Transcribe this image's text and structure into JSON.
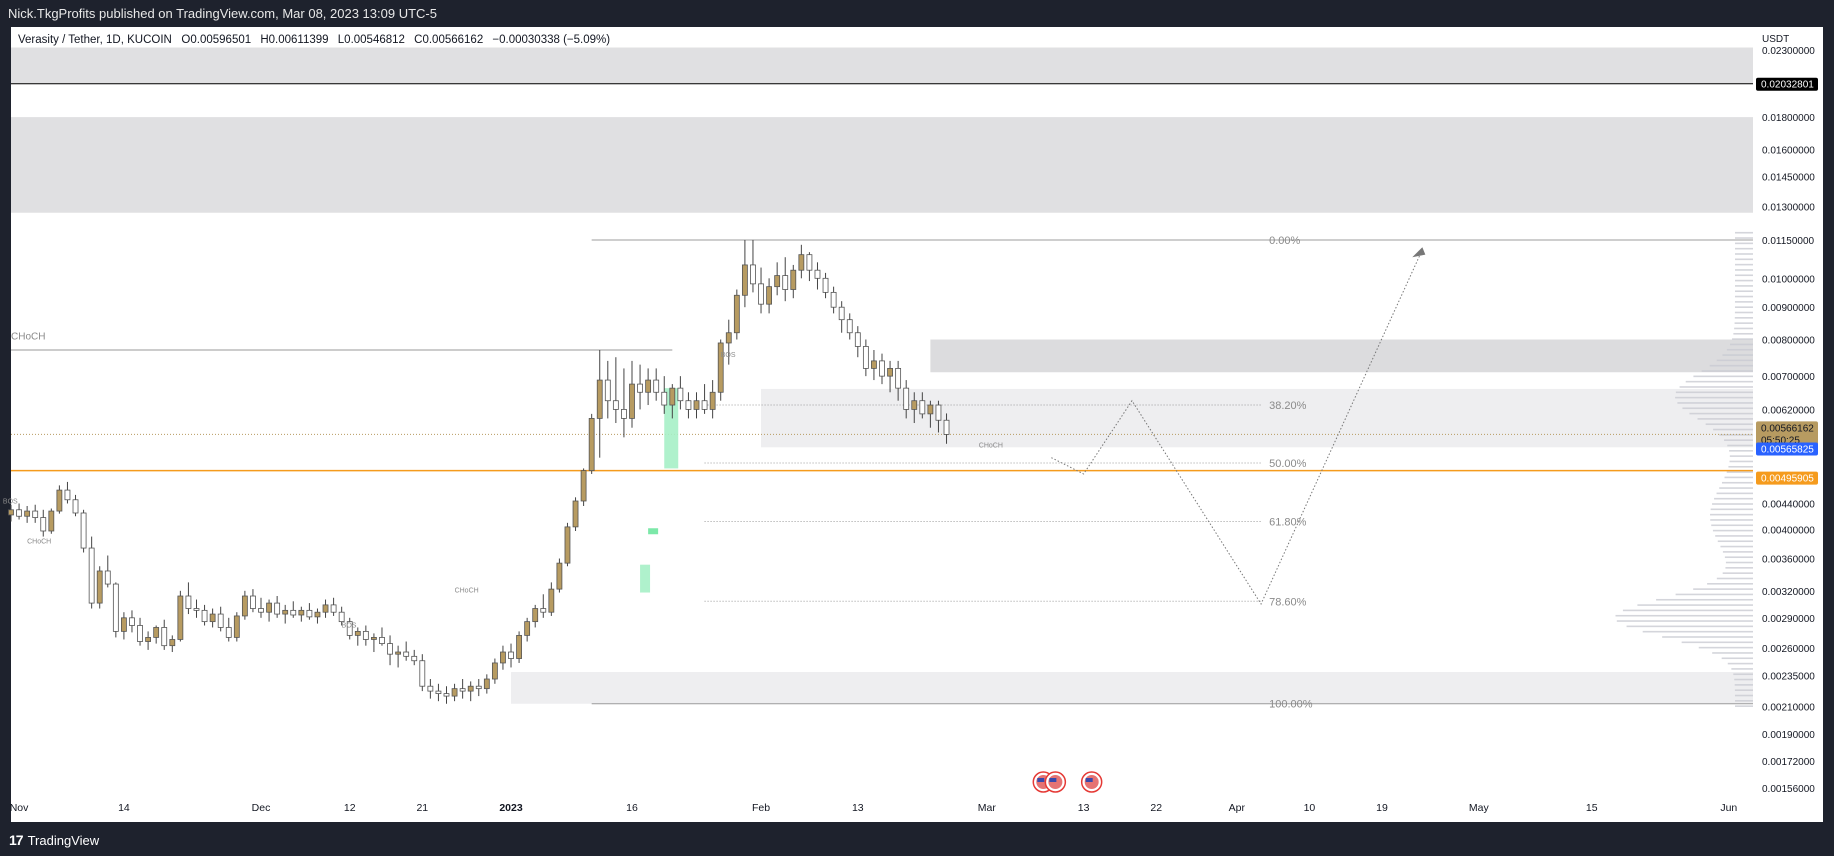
{
  "header": {
    "published_line": "Nick.TkgProfits published on TradingView.com, Mar 08, 2023 13:09 UTC-5"
  },
  "legend": {
    "symbol": "Verasity / Tether, 1D, KUCOIN",
    "open_label": "O",
    "open": "0.00596501",
    "high_label": "H",
    "high": "0.00611399",
    "low_label": "L",
    "low": "0.00546812",
    "close_label": "C",
    "close": "0.00566162",
    "change": "−0.00030338 (−5.09%)"
  },
  "footer": {
    "brand": "TradingView"
  },
  "colors": {
    "bull": "#b79b61",
    "bear": "#ffffff",
    "wick": "#444444",
    "hline_orange": "#f59b1d",
    "last_price_bg": "#b79b61",
    "blue_label": "#2962ff",
    "zone": "#d6d6d8",
    "zone_light": "#ececee",
    "fvg": "#a6f0c6"
  },
  "chart_data": {
    "type": "candlestick",
    "currency": "USDT",
    "y_scale": "log",
    "ylim": [
      0.00152,
      0.025
    ],
    "yaxis_ticks": [
      "0.02300000",
      "0.01800000",
      "0.01600000",
      "0.01450000",
      "0.01300000",
      "0.01150000",
      "0.01000000",
      "0.00900000",
      "0.00800000",
      "0.00700000",
      "0.00620000",
      "0.00440000",
      "0.00400000",
      "0.00360000",
      "0.00320000",
      "0.00290000",
      "0.00260000",
      "0.00235000",
      "0.00210000",
      "0.00190000",
      "0.00172000",
      "0.00156000"
    ],
    "price_labels": [
      {
        "value": "0.02032801",
        "price": 0.02032801,
        "style": "black"
      },
      {
        "value": "0.00566162",
        "price": 0.00566162,
        "style": "last",
        "countdown": "05:50:25"
      },
      {
        "value": "0.00565825",
        "price": 0.00565825,
        "style": "blue"
      },
      {
        "value": "0.00495905",
        "price": 0.00495905,
        "style": "orange"
      }
    ],
    "x_start": "2022-10-31",
    "x_end": "2023-06-04",
    "xaxis_ticks": [
      {
        "label": "Nov",
        "date": "2022-11-01"
      },
      {
        "label": "14",
        "date": "2022-11-14"
      },
      {
        "label": "Dec",
        "date": "2022-12-01"
      },
      {
        "label": "12",
        "date": "2022-12-12"
      },
      {
        "label": "21",
        "date": "2022-12-21"
      },
      {
        "label": "2023",
        "date": "2023-01-01"
      },
      {
        "label": "16",
        "date": "2023-01-16"
      },
      {
        "label": "Feb",
        "date": "2023-02-01"
      },
      {
        "label": "13",
        "date": "2023-02-13"
      },
      {
        "label": "Mar",
        "date": "2023-03-01"
      },
      {
        "label": "13",
        "date": "2023-03-13"
      },
      {
        "label": "22",
        "date": "2023-03-22"
      },
      {
        "label": "Apr",
        "date": "2023-04-01"
      },
      {
        "label": "10",
        "date": "2023-04-10"
      },
      {
        "label": "19",
        "date": "2023-04-19"
      },
      {
        "label": "May",
        "date": "2023-05-01"
      },
      {
        "label": "15",
        "date": "2023-05-15"
      },
      {
        "label": "Jun",
        "date": "2023-06-01"
      }
    ],
    "first_candle": "2022-10-31",
    "candles": [
      [
        0.00422,
        0.00438,
        0.00412,
        0.0043
      ],
      [
        0.0043,
        0.0044,
        0.00415,
        0.0042
      ],
      [
        0.0042,
        0.00436,
        0.0041,
        0.00428
      ],
      [
        0.00428,
        0.00438,
        0.0041,
        0.00418
      ],
      [
        0.00418,
        0.0043,
        0.0039,
        0.00398
      ],
      [
        0.00398,
        0.00432,
        0.00394,
        0.00428
      ],
      [
        0.00428,
        0.0047,
        0.00424,
        0.00462
      ],
      [
        0.00462,
        0.00476,
        0.0044,
        0.00446
      ],
      [
        0.00446,
        0.00454,
        0.0042,
        0.00425
      ],
      [
        0.00425,
        0.0043,
        0.00368,
        0.00374
      ],
      [
        0.00374,
        0.0039,
        0.003,
        0.00306
      ],
      [
        0.00306,
        0.0035,
        0.003,
        0.00344
      ],
      [
        0.00344,
        0.00364,
        0.00324,
        0.00328
      ],
      [
        0.00328,
        0.0033,
        0.0027,
        0.00276
      ],
      [
        0.00276,
        0.00296,
        0.00268,
        0.0029
      ],
      [
        0.0029,
        0.00298,
        0.00275,
        0.00282
      ],
      [
        0.00282,
        0.0029,
        0.00262,
        0.00266
      ],
      [
        0.00266,
        0.00276,
        0.00258,
        0.0027
      ],
      [
        0.0027,
        0.00282,
        0.00264,
        0.0028
      ],
      [
        0.0028,
        0.00288,
        0.00258,
        0.00262
      ],
      [
        0.00262,
        0.00272,
        0.00256,
        0.00268
      ],
      [
        0.00268,
        0.0032,
        0.00266,
        0.00314
      ],
      [
        0.00314,
        0.0033,
        0.00294,
        0.003
      ],
      [
        0.003,
        0.0031,
        0.0029,
        0.00298
      ],
      [
        0.00298,
        0.00304,
        0.00282,
        0.00286
      ],
      [
        0.00286,
        0.003,
        0.0028,
        0.00294
      ],
      [
        0.00294,
        0.00302,
        0.00276,
        0.0028
      ],
      [
        0.0028,
        0.0029,
        0.00266,
        0.0027
      ],
      [
        0.0027,
        0.00296,
        0.00266,
        0.00292
      ],
      [
        0.00292,
        0.0032,
        0.00288,
        0.00314
      ],
      [
        0.00314,
        0.00322,
        0.00296,
        0.003
      ],
      [
        0.003,
        0.00312,
        0.0029,
        0.00296
      ],
      [
        0.00296,
        0.0031,
        0.00286,
        0.00306
      ],
      [
        0.00306,
        0.00314,
        0.0029,
        0.00294
      ],
      [
        0.00294,
        0.00304,
        0.00284,
        0.00298
      ],
      [
        0.00298,
        0.00308,
        0.0029,
        0.00293
      ],
      [
        0.00293,
        0.00302,
        0.00286,
        0.00298
      ],
      [
        0.00298,
        0.00306,
        0.00288,
        0.00291
      ],
      [
        0.00291,
        0.003,
        0.00284,
        0.00296
      ],
      [
        0.00296,
        0.0031,
        0.0029,
        0.00304
      ],
      [
        0.00304,
        0.00312,
        0.00292,
        0.00296
      ],
      [
        0.00296,
        0.00302,
        0.00282,
        0.00286
      ],
      [
        0.00286,
        0.0029,
        0.00268,
        0.00272
      ],
      [
        0.00272,
        0.0028,
        0.00262,
        0.00276
      ],
      [
        0.00276,
        0.00282,
        0.00262,
        0.00268
      ],
      [
        0.00268,
        0.00274,
        0.00256,
        0.0027
      ],
      [
        0.0027,
        0.0028,
        0.00262,
        0.00264
      ],
      [
        0.00264,
        0.00272,
        0.00244,
        0.00254
      ],
      [
        0.00254,
        0.00262,
        0.00242,
        0.00256
      ],
      [
        0.00256,
        0.00266,
        0.00248,
        0.00252
      ],
      [
        0.00252,
        0.00258,
        0.00244,
        0.00248
      ],
      [
        0.00248,
        0.00254,
        0.00222,
        0.00226
      ],
      [
        0.00226,
        0.00232,
        0.00216,
        0.00222
      ],
      [
        0.00222,
        0.00228,
        0.00214,
        0.0022
      ],
      [
        0.0022,
        0.00226,
        0.00212,
        0.00218
      ],
      [
        0.00218,
        0.00228,
        0.00214,
        0.00224
      ],
      [
        0.00224,
        0.00232,
        0.00216,
        0.00222
      ],
      [
        0.00222,
        0.0023,
        0.00214,
        0.00226
      ],
      [
        0.00226,
        0.00232,
        0.00218,
        0.00224
      ],
      [
        0.00224,
        0.00236,
        0.0022,
        0.00232
      ],
      [
        0.00232,
        0.0025,
        0.00228,
        0.00246
      ],
      [
        0.00246,
        0.00262,
        0.0024,
        0.00256
      ],
      [
        0.00256,
        0.00264,
        0.00242,
        0.0025
      ],
      [
        0.0025,
        0.00276,
        0.00246,
        0.00272
      ],
      [
        0.00272,
        0.0029,
        0.00266,
        0.00286
      ],
      [
        0.00286,
        0.00304,
        0.0028,
        0.003
      ],
      [
        0.003,
        0.00316,
        0.0029,
        0.00296
      ],
      [
        0.00296,
        0.0033,
        0.00292,
        0.00322
      ],
      [
        0.00322,
        0.0036,
        0.00318,
        0.00354
      ],
      [
        0.00354,
        0.0041,
        0.0035,
        0.00404
      ],
      [
        0.00404,
        0.0045,
        0.00398,
        0.00444
      ],
      [
        0.00444,
        0.005,
        0.00436,
        0.00496
      ],
      [
        0.00496,
        0.0061,
        0.0049,
        0.006
      ],
      [
        0.006,
        0.0077,
        0.0052,
        0.0069
      ],
      [
        0.0069,
        0.0074,
        0.006,
        0.0064
      ],
      [
        0.0064,
        0.0075,
        0.0059,
        0.0062
      ],
      [
        0.0062,
        0.0072,
        0.0056,
        0.006
      ],
      [
        0.006,
        0.0074,
        0.0058,
        0.0068
      ],
      [
        0.0068,
        0.0073,
        0.0062,
        0.0066
      ],
      [
        0.0066,
        0.0072,
        0.0063,
        0.0069
      ],
      [
        0.0069,
        0.0072,
        0.0064,
        0.0066
      ],
      [
        0.0066,
        0.007,
        0.0061,
        0.0063
      ],
      [
        0.0063,
        0.0068,
        0.006,
        0.0067
      ],
      [
        0.0067,
        0.007,
        0.0062,
        0.0064
      ],
      [
        0.0064,
        0.0066,
        0.006,
        0.0062
      ],
      [
        0.0062,
        0.0066,
        0.006,
        0.0064
      ],
      [
        0.0064,
        0.0068,
        0.0061,
        0.0062
      ],
      [
        0.0062,
        0.0069,
        0.006,
        0.0066
      ],
      [
        0.0066,
        0.008,
        0.0064,
        0.0079
      ],
      [
        0.0079,
        0.0086,
        0.0073,
        0.0082
      ],
      [
        0.0082,
        0.0096,
        0.008,
        0.0094
      ],
      [
        0.0094,
        0.0115,
        0.009,
        0.0105
      ],
      [
        0.0105,
        0.0115,
        0.0095,
        0.0098
      ],
      [
        0.0098,
        0.0104,
        0.0088,
        0.0091
      ],
      [
        0.0091,
        0.01,
        0.0088,
        0.0097
      ],
      [
        0.0097,
        0.0106,
        0.0094,
        0.0101
      ],
      [
        0.0101,
        0.0108,
        0.0092,
        0.0096
      ],
      [
        0.0096,
        0.0105,
        0.0093,
        0.0103
      ],
      [
        0.0103,
        0.0113,
        0.01,
        0.0109
      ],
      [
        0.0109,
        0.011,
        0.0099,
        0.0103
      ],
      [
        0.0103,
        0.0106,
        0.0096,
        0.01
      ],
      [
        0.01,
        0.0102,
        0.0093,
        0.0095
      ],
      [
        0.0095,
        0.0097,
        0.0088,
        0.009
      ],
      [
        0.009,
        0.0092,
        0.0082,
        0.0086
      ],
      [
        0.0086,
        0.0088,
        0.008,
        0.0082
      ],
      [
        0.0082,
        0.0084,
        0.0075,
        0.0078
      ],
      [
        0.0078,
        0.008,
        0.007,
        0.0072
      ],
      [
        0.0072,
        0.0077,
        0.0069,
        0.0074
      ],
      [
        0.0074,
        0.0076,
        0.0068,
        0.007
      ],
      [
        0.007,
        0.0074,
        0.0066,
        0.0072
      ],
      [
        0.0072,
        0.0074,
        0.0064,
        0.0067
      ],
      [
        0.0067,
        0.0069,
        0.006,
        0.0062
      ],
      [
        0.0062,
        0.0066,
        0.0059,
        0.0064
      ],
      [
        0.0064,
        0.0066,
        0.006,
        0.0061
      ],
      [
        0.0061,
        0.0064,
        0.0058,
        0.0063
      ],
      [
        0.0063,
        0.0064,
        0.0057,
        0.00596
      ],
      [
        0.00596,
        0.00611,
        0.00547,
        0.00566
      ]
    ],
    "fib_levels": [
      {
        "label": "0.00%",
        "price": 0.0115
      },
      {
        "label": "38.20%",
        "price": 0.0063
      },
      {
        "label": "50.00%",
        "price": 0.0051
      },
      {
        "label": "61.80%",
        "price": 0.00412
      },
      {
        "label": "78.60%",
        "price": 0.00308
      },
      {
        "label": "100.00%",
        "price": 0.00212
      }
    ],
    "annotations": [
      {
        "text": "CHoCH",
        "date": "2022-10-31",
        "price": 0.008
      },
      {
        "text": "BOS",
        "date": "2022-10-30",
        "price": 0.0044
      },
      {
        "text": "CHoCH",
        "date": "2022-11-02",
        "price": 0.0038
      },
      {
        "text": "CHoCH",
        "date": "2022-12-25",
        "price": 0.00318
      },
      {
        "text": "BOS",
        "date": "2022-12-11",
        "price": 0.0028
      },
      {
        "text": "BOS",
        "date": "2023-01-27",
        "price": 0.0075
      },
      {
        "text": "CHoCH",
        "date": "2023-02-28",
        "price": 0.0054
      }
    ]
  }
}
